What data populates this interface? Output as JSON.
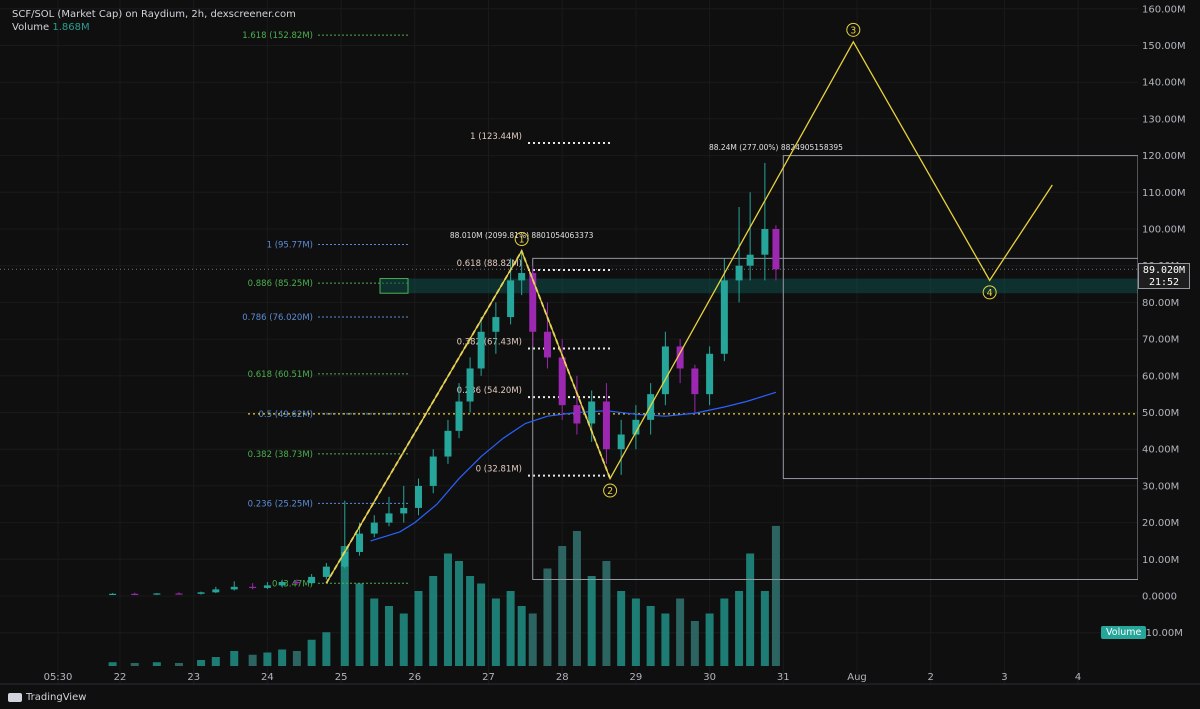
{
  "header": {
    "title": "SCF/SOL (Market Cap) on Raydium, 2h, dexscreener.com",
    "volume_label": "Volume",
    "volume_value": "1.868M"
  },
  "footer": {
    "brand": "TradingView"
  },
  "colors": {
    "bg": "#0f0f0f",
    "up": "#26a69a",
    "down": "#9c27b0",
    "vol_up": "#1f8a80",
    "vol_down": "#2f6e6a",
    "ma": "#2962ff",
    "wave": "#e8d23c",
    "fib_green": "#4caf50",
    "fib_blue": "#5b8cd6",
    "text": "#d1d4dc"
  },
  "chart_data": {
    "type": "candlestick",
    "title": "SCF/SOL (Market Cap) on Raydium, 2h, dexscreener.com",
    "x_tick_labels": [
      "05:30",
      "22",
      "23",
      "24",
      "25",
      "26",
      "27",
      "28",
      "29",
      "30",
      "31",
      "Aug",
      "2",
      "3",
      "4"
    ],
    "y_tick_labels": [
      "-10.00M",
      "0.0000",
      "10.00M",
      "20.00M",
      "30.00M",
      "40.00M",
      "50.00M",
      "60.00M",
      "70.00M",
      "80.00M",
      "90.00M",
      "100.00M",
      "110.00M",
      "120.00M",
      "130.00M",
      "140.00M",
      "150.00M",
      "160.00M"
    ],
    "y_unit": "M",
    "ylim": [
      -10,
      160
    ],
    "last_price": "89.020M",
    "countdown": "21:52",
    "volume_badge": "Volume",
    "candles": [
      {
        "d": 21.9,
        "o": 0.5,
        "h": 0.8,
        "l": 0.3,
        "c": 0.6
      },
      {
        "d": 22.2,
        "o": 0.6,
        "h": 0.9,
        "l": 0.4,
        "c": 0.5
      },
      {
        "d": 22.5,
        "o": 0.5,
        "h": 0.8,
        "l": 0.3,
        "c": 0.7
      },
      {
        "d": 22.8,
        "o": 0.7,
        "h": 1.0,
        "l": 0.5,
        "c": 0.6
      },
      {
        "d": 23.1,
        "o": 0.6,
        "h": 1.2,
        "l": 0.4,
        "c": 1.0
      },
      {
        "d": 23.3,
        "o": 1.0,
        "h": 2.5,
        "l": 0.8,
        "c": 1.8
      },
      {
        "d": 23.55,
        "o": 1.8,
        "h": 4.0,
        "l": 1.5,
        "c": 2.5
      },
      {
        "d": 23.8,
        "o": 2.5,
        "h": 3.5,
        "l": 1.8,
        "c": 2.2
      },
      {
        "d": 24.0,
        "o": 2.2,
        "h": 3.8,
        "l": 1.9,
        "c": 2.9
      },
      {
        "d": 24.2,
        "o": 2.9,
        "h": 4.2,
        "l": 2.5,
        "c": 3.8
      },
      {
        "d": 24.4,
        "o": 3.8,
        "h": 4.5,
        "l": 3.0,
        "c": 3.5
      },
      {
        "d": 24.6,
        "o": 3.5,
        "h": 6.0,
        "l": 3.2,
        "c": 5.2
      },
      {
        "d": 24.8,
        "o": 5.2,
        "h": 9.0,
        "l": 4.5,
        "c": 8.0
      },
      {
        "d": 25.05,
        "o": 8.0,
        "h": 26.0,
        "l": 7.5,
        "c": 12.0
      },
      {
        "d": 25.25,
        "o": 12.0,
        "h": 20.0,
        "l": 11.0,
        "c": 17.0
      },
      {
        "d": 25.45,
        "o": 17.0,
        "h": 22.0,
        "l": 16.0,
        "c": 20.0
      },
      {
        "d": 25.65,
        "o": 20.0,
        "h": 27.0,
        "l": 19.0,
        "c": 22.5
      },
      {
        "d": 25.85,
        "o": 22.5,
        "h": 30.0,
        "l": 20.0,
        "c": 24.0
      },
      {
        "d": 26.05,
        "o": 24.0,
        "h": 32.0,
        "l": 22.0,
        "c": 30.0
      },
      {
        "d": 26.25,
        "o": 30.0,
        "h": 40.0,
        "l": 28.0,
        "c": 38.0
      },
      {
        "d": 26.45,
        "o": 38.0,
        "h": 48.0,
        "l": 36.0,
        "c": 45.0
      },
      {
        "d": 26.6,
        "o": 45.0,
        "h": 58.0,
        "l": 43.0,
        "c": 53.0
      },
      {
        "d": 26.75,
        "o": 53.0,
        "h": 65.0,
        "l": 50.0,
        "c": 62.0
      },
      {
        "d": 26.9,
        "o": 62.0,
        "h": 76.0,
        "l": 60.0,
        "c": 72.0
      },
      {
        "d": 27.1,
        "o": 72.0,
        "h": 80.0,
        "l": 66.0,
        "c": 76.0
      },
      {
        "d": 27.3,
        "o": 76.0,
        "h": 92.0,
        "l": 74.0,
        "c": 86.0
      },
      {
        "d": 27.45,
        "o": 86.0,
        "h": 94.0,
        "l": 82.0,
        "c": 88.0
      },
      {
        "d": 27.6,
        "o": 88.0,
        "h": 90.0,
        "l": 68.0,
        "c": 72.0
      },
      {
        "d": 27.8,
        "o": 72.0,
        "h": 80.0,
        "l": 62.0,
        "c": 65.0
      },
      {
        "d": 28.0,
        "o": 65.0,
        "h": 70.0,
        "l": 48.0,
        "c": 52.0
      },
      {
        "d": 28.2,
        "o": 52.0,
        "h": 60.0,
        "l": 44.0,
        "c": 47.0
      },
      {
        "d": 28.4,
        "o": 47.0,
        "h": 56.0,
        "l": 42.0,
        "c": 53.0
      },
      {
        "d": 28.6,
        "o": 53.0,
        "h": 58.0,
        "l": 36.0,
        "c": 40.0
      },
      {
        "d": 28.8,
        "o": 40.0,
        "h": 48.0,
        "l": 33.0,
        "c": 44.0
      },
      {
        "d": 29.0,
        "o": 44.0,
        "h": 52.0,
        "l": 40.0,
        "c": 48.0
      },
      {
        "d": 29.2,
        "o": 48.0,
        "h": 58.0,
        "l": 44.0,
        "c": 55.0
      },
      {
        "d": 29.4,
        "o": 55.0,
        "h": 72.0,
        "l": 52.0,
        "c": 68.0
      },
      {
        "d": 29.6,
        "o": 68.0,
        "h": 70.0,
        "l": 58.0,
        "c": 62.0
      },
      {
        "d": 29.8,
        "o": 62.0,
        "h": 63.0,
        "l": 50.0,
        "c": 55.0
      },
      {
        "d": 30.0,
        "o": 55.0,
        "h": 68.0,
        "l": 52.0,
        "c": 66.0
      },
      {
        "d": 30.2,
        "o": 66.0,
        "h": 92.0,
        "l": 64.0,
        "c": 86.0
      },
      {
        "d": 30.4,
        "o": 86.0,
        "h": 106.0,
        "l": 80.0,
        "c": 90.0
      },
      {
        "d": 30.55,
        "o": 90.0,
        "h": 110.0,
        "l": 86.0,
        "c": 93.0
      },
      {
        "d": 30.75,
        "o": 93.0,
        "h": 118.0,
        "l": 86.0,
        "c": 100.0
      },
      {
        "d": 30.9,
        "o": 100.0,
        "h": 101.0,
        "l": 86.0,
        "c": 89.0
      }
    ],
    "volume_M": [
      0.05,
      0.04,
      0.05,
      0.04,
      0.08,
      0.12,
      0.2,
      0.15,
      0.18,
      0.22,
      0.2,
      0.35,
      0.45,
      1.6,
      1.1,
      0.9,
      0.8,
      0.7,
      1.0,
      1.2,
      1.5,
      1.4,
      1.2,
      1.1,
      0.9,
      1.0,
      0.8,
      0.7,
      1.3,
      1.6,
      1.8,
      1.2,
      1.4,
      1.0,
      0.9,
      0.8,
      0.7,
      0.9,
      0.6,
      0.7,
      0.9,
      1.0,
      1.5,
      1.0,
      1.868
    ],
    "moving_average": [
      {
        "d": 25.4,
        "v": 15.0
      },
      {
        "d": 25.8,
        "v": 17.5
      },
      {
        "d": 26.0,
        "v": 20.0
      },
      {
        "d": 26.3,
        "v": 25.0
      },
      {
        "d": 26.6,
        "v": 32.0
      },
      {
        "d": 26.9,
        "v": 38.0
      },
      {
        "d": 27.2,
        "v": 43.0
      },
      {
        "d": 27.5,
        "v": 47.0
      },
      {
        "d": 27.8,
        "v": 49.0
      },
      {
        "d": 28.2,
        "v": 50.0
      },
      {
        "d": 28.6,
        "v": 50.5
      },
      {
        "d": 29.0,
        "v": 49.5
      },
      {
        "d": 29.4,
        "v": 49.0
      },
      {
        "d": 29.8,
        "v": 49.8
      },
      {
        "d": 30.2,
        "v": 51.5
      },
      {
        "d": 30.5,
        "v": 53.0
      },
      {
        "d": 30.9,
        "v": 55.5
      }
    ],
    "fib_retracement_left": [
      {
        "label": "1.618 (152.82M)",
        "v": 152.82,
        "color": "green"
      },
      {
        "label": "1 (95.77M)",
        "v": 95.77,
        "color": "blue"
      },
      {
        "label": "0.886 (85.25M)",
        "v": 85.25,
        "color": "green"
      },
      {
        "label": "0.786 (76.020M)",
        "v": 76.02,
        "color": "blue"
      },
      {
        "label": "0.618 (60.51M)",
        "v": 60.51,
        "color": "green"
      },
      {
        "label": "0.5 (49.62M)",
        "v": 49.62,
        "color": "blue"
      },
      {
        "label": "0.382 (38.73M)",
        "v": 38.73,
        "color": "green"
      },
      {
        "label": "0.236 (25.25M)",
        "v": 25.25,
        "color": "blue"
      },
      {
        "label": "0 (3.47M)",
        "v": 3.47,
        "color": "green"
      }
    ],
    "fib_retracement_right": [
      {
        "label": "1 (123.44M)",
        "v": 123.44
      },
      {
        "label": "0.618 (88.82M)",
        "v": 88.82
      },
      {
        "label": "0.382 (67.43M)",
        "v": 67.43
      },
      {
        "label": "0.236 (54.20M)",
        "v": 54.2
      },
      {
        "label": "0 (32.81M)",
        "v": 32.81
      }
    ],
    "wave_points": [
      {
        "label": "",
        "d": 24.8,
        "v": 3.5
      },
      {
        "label": "1",
        "d": 27.45,
        "v": 94.0
      },
      {
        "label": "2",
        "d": 28.65,
        "v": 32.0
      },
      {
        "label": "3",
        "d": 31.95,
        "v": 151.0
      },
      {
        "label": "4",
        "d": 33.8,
        "v": 86.0
      },
      {
        "label": "",
        "d": 34.65,
        "v": 112.0
      }
    ],
    "annotations": [
      {
        "text": "88.010M (2099.81%) 8801054063373",
        "d": 27.45,
        "v": 97.5
      },
      {
        "text": "88.24M (277.00%) 8824905158395",
        "d": 30.9,
        "v": 121.5
      }
    ],
    "support_zone": [
      82.5,
      86.5
    ],
    "horizontal_line": 49.62
  }
}
